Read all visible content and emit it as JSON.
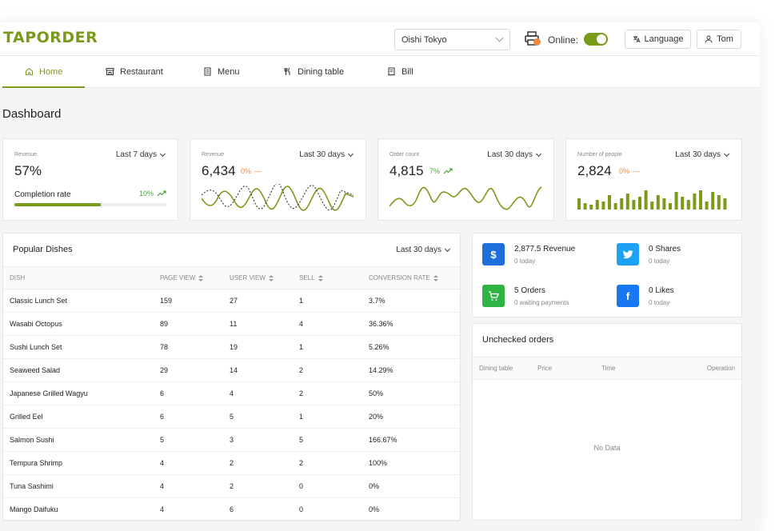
{
  "header": {
    "logo": "TAPORDER",
    "store_select": "Oishi Tokyo",
    "printer_icon": "printer-icon",
    "online_label": "Online:",
    "online": true,
    "language_label": "Language",
    "user_label": "Tom"
  },
  "nav": {
    "items": [
      {
        "label": "Home",
        "icon": "home-icon",
        "active": true
      },
      {
        "label": "Restaurant",
        "icon": "store-icon",
        "active": false
      },
      {
        "label": "Menu",
        "icon": "menu-icon",
        "active": false
      },
      {
        "label": "Dining table",
        "icon": "fork-knife-icon",
        "active": false
      },
      {
        "label": "Bill",
        "icon": "receipt-icon",
        "active": false
      }
    ]
  },
  "page_title": "Dashboard",
  "stats": [
    {
      "label": "Revenue",
      "period": "Last 7 days",
      "value": "57%",
      "progress_label": "Completion rate",
      "progress_pct": "10%",
      "progress": 0.57
    },
    {
      "label": "Revenue",
      "period": "Last 30 days",
      "value": "6,434",
      "trend": "0%"
    },
    {
      "label": "Order count",
      "period": "Last 30 days",
      "value": "4,815",
      "trend": "7%"
    },
    {
      "label": "Number of people",
      "period": "Last 30 days",
      "value": "2,824",
      "trend": "0%"
    }
  ],
  "popular": {
    "title": "Popular Dishes",
    "period": "Last 30 days",
    "columns": [
      "DISH",
      "PAGE VIEW",
      "USER VIEW",
      "SELL",
      "CONVERSION RATE"
    ],
    "rows": [
      [
        "Classic Lunch Set",
        "159",
        "27",
        "1",
        "3.7%"
      ],
      [
        "Wasabi Octopus",
        "89",
        "11",
        "4",
        "36.36%"
      ],
      [
        "Sushi Lunch Set",
        "78",
        "19",
        "1",
        "5.26%"
      ],
      [
        "Seaweed Salad",
        "29",
        "14",
        "2",
        "14.29%"
      ],
      [
        "Japanese Grilled Wagyu",
        "6",
        "4",
        "2",
        "50%"
      ],
      [
        "Grilled Eel",
        "6",
        "5",
        "1",
        "20%"
      ],
      [
        "Salmon Sushi",
        "5",
        "3",
        "5",
        "166.67%"
      ],
      [
        "Tempura Shrimp",
        "4",
        "2",
        "2",
        "100%"
      ],
      [
        "Tuna Sashimi",
        "4",
        "2",
        "0",
        "0%"
      ],
      [
        "Mango Daifuku",
        "4",
        "6",
        "0",
        "0%"
      ]
    ]
  },
  "summary": [
    {
      "icon": "dollar-icon",
      "color": "#1e6fd9",
      "title": "2,877.5 Revenue",
      "sub": "0 today"
    },
    {
      "icon": "twitter-icon",
      "color": "#1da1f2",
      "title": "0 Shares",
      "sub": "0 today"
    },
    {
      "icon": "cart-icon",
      "color": "#2fb344",
      "title": "5 Orders",
      "sub": "0 waiting payments"
    },
    {
      "icon": "facebook-icon",
      "color": "#1877f2",
      "title": "0 Likes",
      "sub": "0 today"
    }
  ],
  "unchecked": {
    "title": "Unchecked orders",
    "columns": [
      "Dining table",
      "Price",
      "Time",
      "Operation"
    ],
    "empty": "No Data"
  }
}
